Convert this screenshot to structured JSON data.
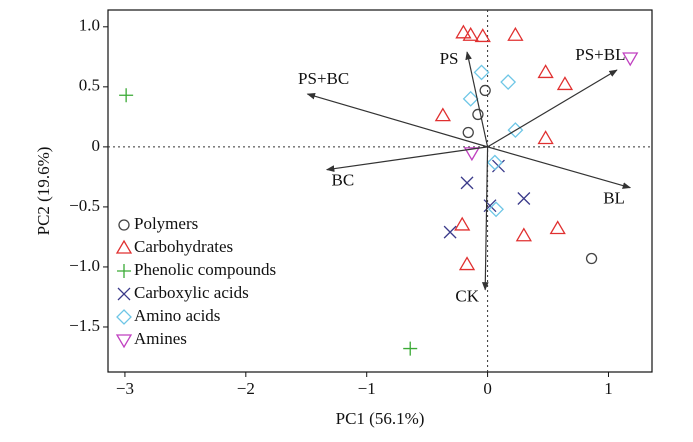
{
  "chart_data": {
    "type": "biplot",
    "xlabel": "PC1 (56.1%)",
    "ylabel": "PC2 (19.6%)",
    "xlim": [
      -3.14,
      1.36
    ],
    "ylim": [
      -1.875,
      1.14
    ],
    "xticks": [
      {
        "value": -3,
        "label": "−3"
      },
      {
        "value": -2,
        "label": "−2"
      },
      {
        "value": -1,
        "label": "−1"
      },
      0,
      1
    ],
    "yticks": [
      {
        "value": -1.5,
        "label": "−1.5"
      },
      {
        "value": -1,
        "label": "−1.0"
      },
      {
        "value": -0.5,
        "label": "−0.5"
      },
      0,
      {
        "value": 0.5,
        "label": "0.5"
      },
      {
        "value": 1,
        "label": "1.0"
      }
    ],
    "reference_lines": true,
    "legend": "lower left",
    "series": [
      {
        "name": "Polymers",
        "color": "#444444",
        "marker": "circle",
        "x": [
          -0.02,
          -0.08,
          -0.16,
          0.86
        ],
        "values": [
          0.47,
          0.27,
          0.12,
          -0.93
        ]
      },
      {
        "name": "Carbohydrates",
        "color": "#e03030",
        "marker": "triangle",
        "x": [
          -0.2,
          -0.14,
          -0.04,
          0.23,
          0.48,
          0.64,
          -0.37,
          0.48,
          -0.21,
          -0.17,
          0.3,
          0.58
        ],
        "values": [
          0.95,
          0.93,
          0.92,
          0.93,
          0.62,
          0.52,
          0.26,
          0.07,
          -0.65,
          -0.98,
          -0.74,
          -0.68
        ]
      },
      {
        "name": "Phenolic compounds",
        "color": "#3aaa35",
        "marker": "plus",
        "x": [
          -2.99,
          -0.64
        ],
        "values": [
          0.43,
          -1.68
        ]
      },
      {
        "name": "Carboxylic acids",
        "color": "#3a3a8a",
        "marker": "cross",
        "x": [
          -0.17,
          0.09,
          0.3,
          -0.31,
          0.02
        ],
        "values": [
          -0.3,
          -0.16,
          -0.43,
          -0.71,
          -0.49
        ]
      },
      {
        "name": "Amino acids",
        "color": "#6ec6e6",
        "marker": "diamond",
        "x": [
          -0.05,
          0.17,
          -0.14,
          0.23,
          0.06,
          0.07
        ],
        "values": [
          0.62,
          0.54,
          0.4,
          0.14,
          -0.13,
          -0.52
        ]
      },
      {
        "name": "Amines",
        "color": "#c040c0",
        "marker": "triangle-down",
        "x": [
          1.18,
          -0.13
        ],
        "values": [
          0.74,
          -0.05
        ]
      }
    ],
    "arrows": [
      {
        "label": "PS",
        "x": -0.17,
        "y": 0.79
      },
      {
        "label": "PS+BL",
        "x": 1.07,
        "y": 0.64
      },
      {
        "label": "PS+BC",
        "x": -1.49,
        "y": 0.44
      },
      {
        "label": "BC",
        "x": -1.33,
        "y": -0.19
      },
      {
        "label": "BL",
        "x": 1.18,
        "y": -0.34
      },
      {
        "label": "CK",
        "x": -0.02,
        "y": -1.19
      }
    ]
  }
}
